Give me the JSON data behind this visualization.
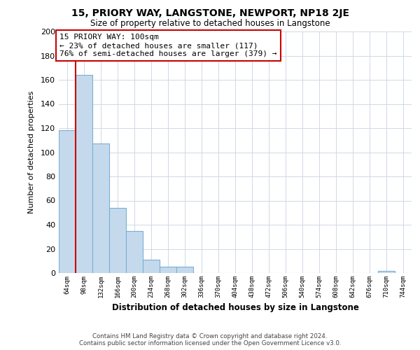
{
  "title": "15, PRIORY WAY, LANGSTONE, NEWPORT, NP18 2JE",
  "subtitle": "Size of property relative to detached houses in Langstone",
  "xlabel": "Distribution of detached houses by size in Langstone",
  "ylabel": "Number of detached properties",
  "bar_labels": [
    "64sqm",
    "98sqm",
    "132sqm",
    "166sqm",
    "200sqm",
    "234sqm",
    "268sqm",
    "302sqm",
    "336sqm",
    "370sqm",
    "404sqm",
    "438sqm",
    "472sqm",
    "506sqm",
    "540sqm",
    "574sqm",
    "608sqm",
    "642sqm",
    "676sqm",
    "710sqm",
    "744sqm"
  ],
  "bar_values": [
    118,
    164,
    107,
    54,
    35,
    11,
    5,
    5,
    0,
    0,
    0,
    0,
    0,
    0,
    0,
    0,
    0,
    0,
    0,
    2,
    0
  ],
  "bar_color": "#c5d9ed",
  "bar_edge_color": "#7aafd4",
  "vline_color": "#cc0000",
  "annotation_line1": "15 PRIORY WAY: 100sqm",
  "annotation_line2": "← 23% of detached houses are smaller (117)",
  "annotation_line3": "76% of semi-detached houses are larger (379) →",
  "annotation_box_color": "white",
  "annotation_box_edge": "#cc0000",
  "ylim": [
    0,
    200
  ],
  "yticks": [
    0,
    20,
    40,
    60,
    80,
    100,
    120,
    140,
    160,
    180,
    200
  ],
  "footer_line1": "Contains HM Land Registry data © Crown copyright and database right 2024.",
  "footer_line2": "Contains public sector information licensed under the Open Government Licence v3.0.",
  "background_color": "#ffffff",
  "grid_color": "#d0d8e4"
}
